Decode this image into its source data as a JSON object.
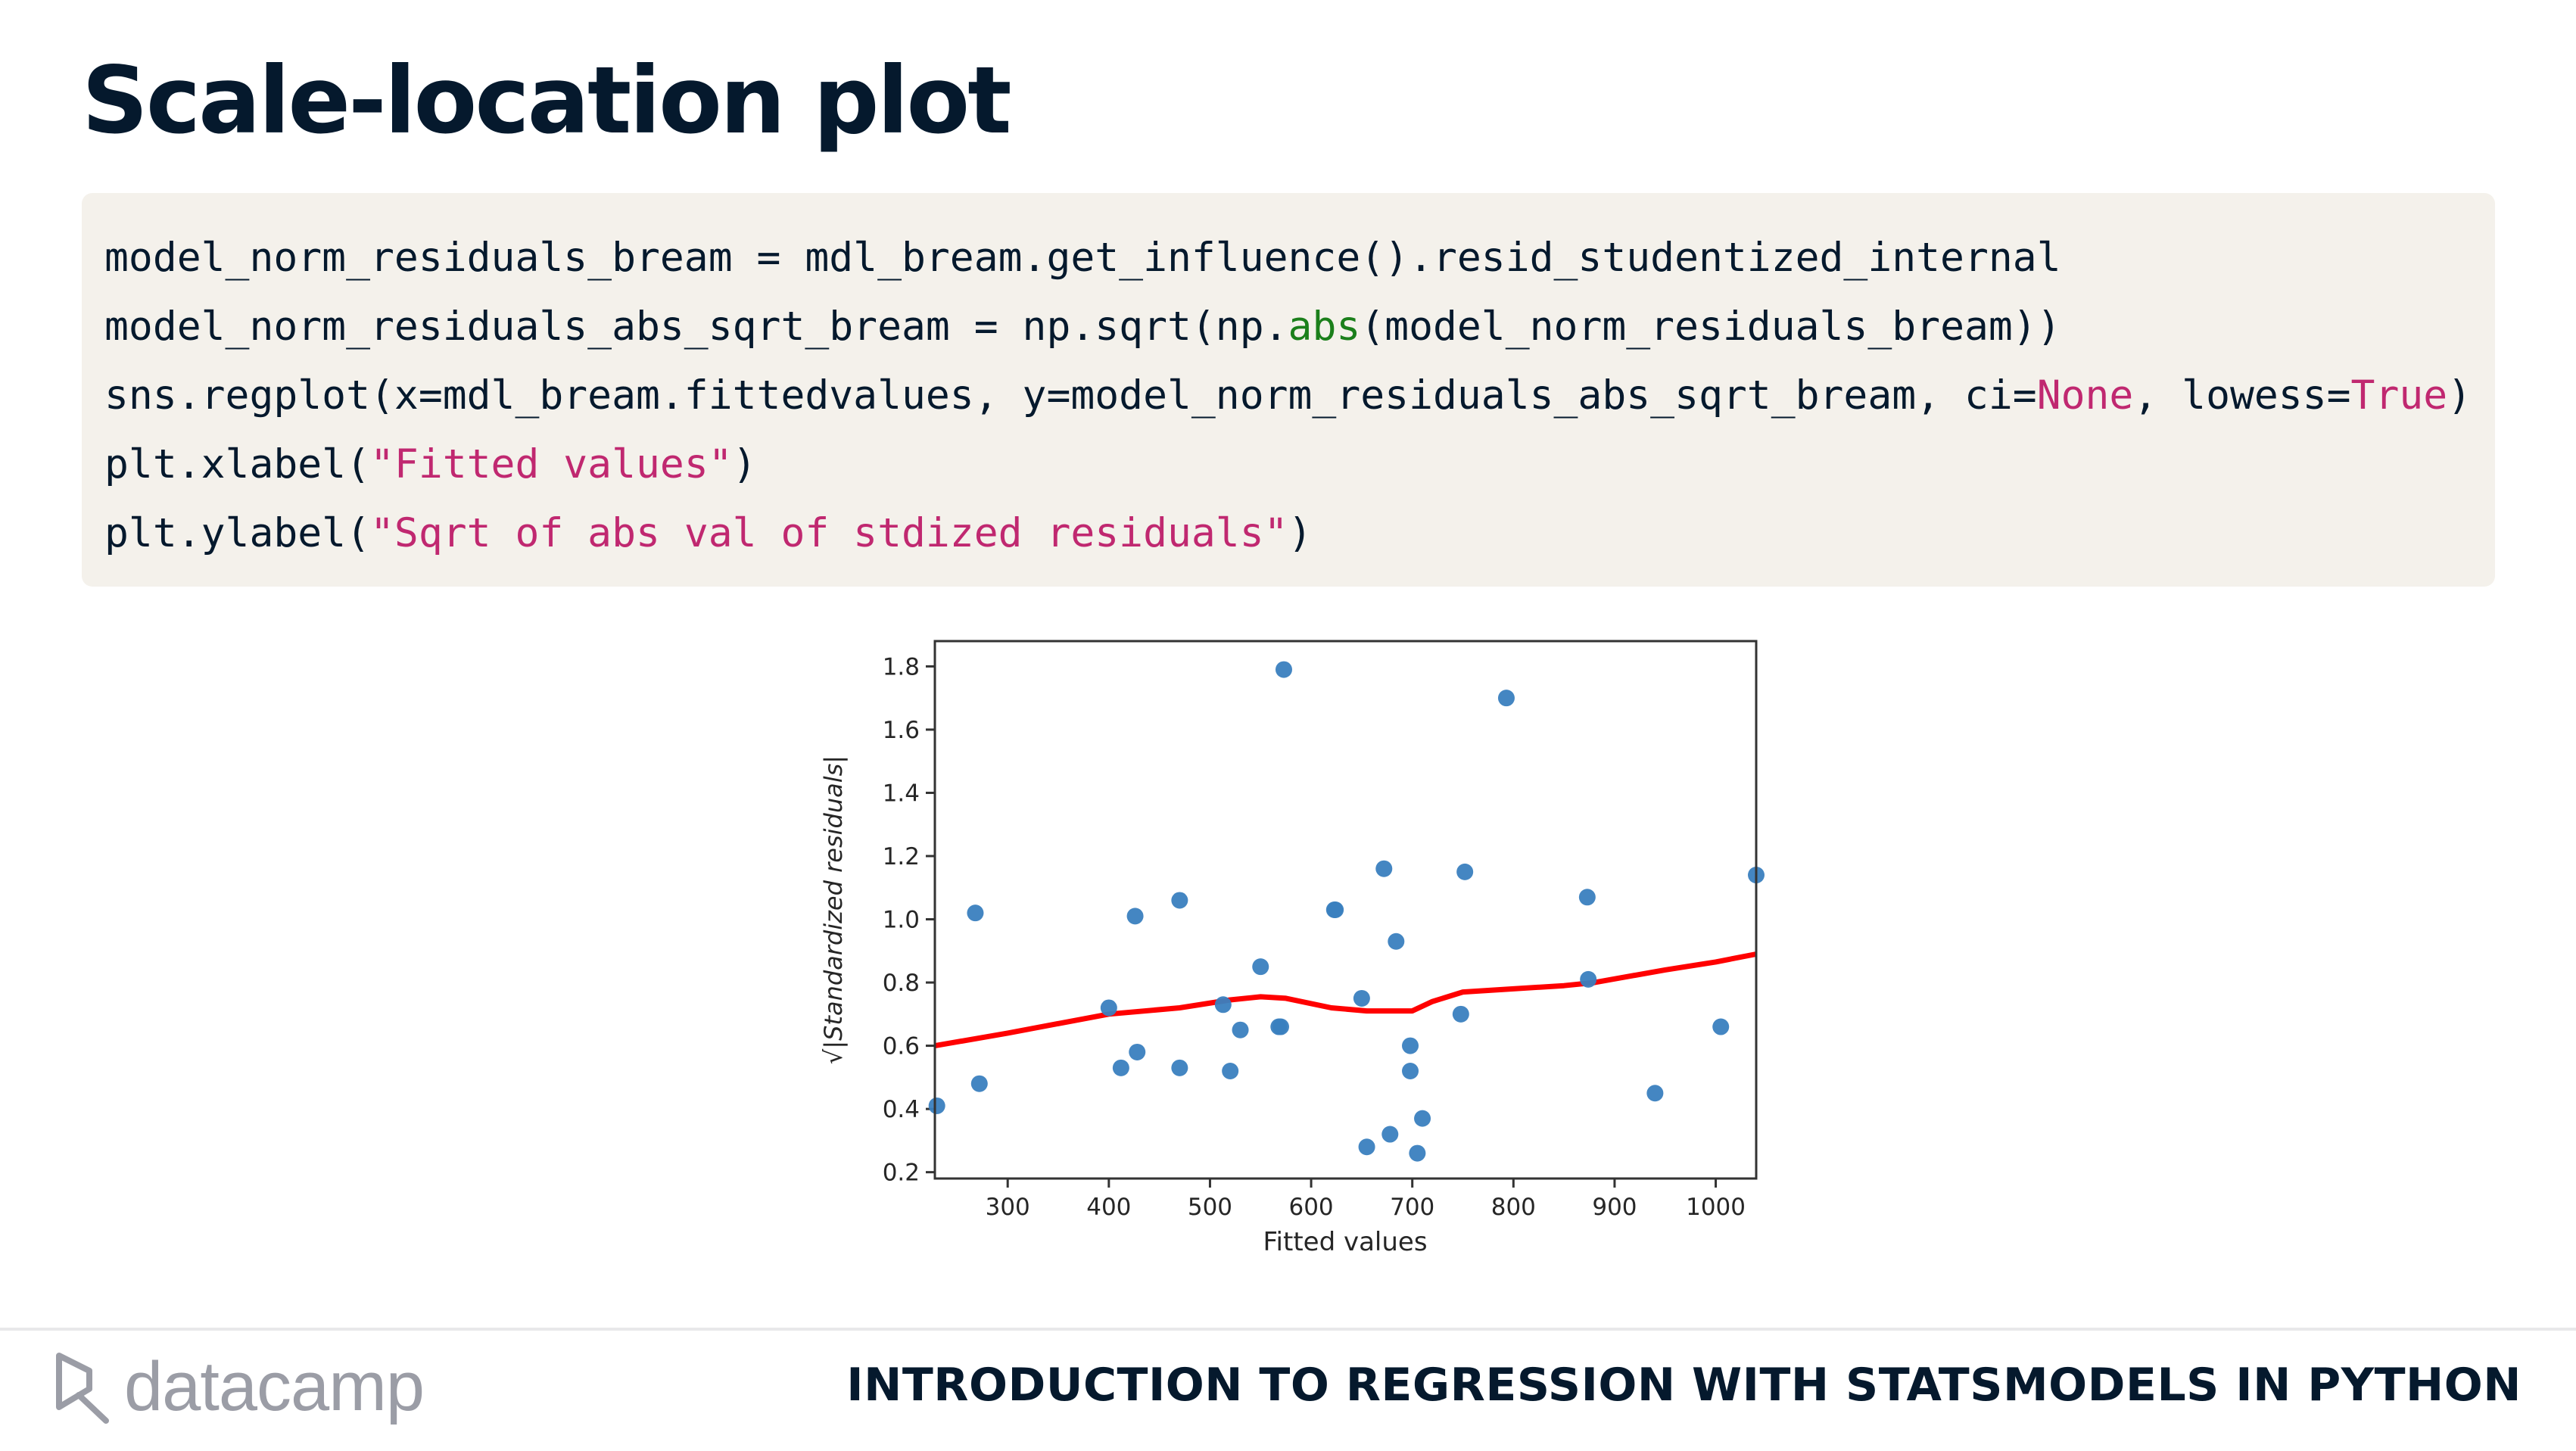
{
  "slide": {
    "title": "Scale-location plot",
    "course_title": "INTRODUCTION TO REGRESSION WITH STATSMODELS IN PYTHON",
    "logo_text": "datacamp"
  },
  "code": {
    "line1": "model_norm_residuals_bream = mdl_bream.get_influence().resid_studentized_internal",
    "line2_a": "model_norm_residuals_abs_sqrt_bream = np.sqrt(np.",
    "line2_b": "abs",
    "line2_c": "(model_norm_residuals_bream))",
    "line3_a": "sns.regplot(x=mdl_bream.fittedvalues, y=model_norm_residuals_abs_sqrt_bream, ci=",
    "line3_b": "None",
    "line3_c": ", lowess=",
    "line3_d": "True",
    "line3_e": ")",
    "line4_a": "plt.xlabel(",
    "line4_b": "\"Fitted values\"",
    "line4_c": ")",
    "line5_a": "plt.ylabel(",
    "line5_b": "\"Sqrt of abs val of stdized residuals\"",
    "line5_c": ")"
  },
  "colors": {
    "points": "#3a7fbf",
    "lowess": "#ff0000",
    "code_builtin": "#1b7f1b",
    "code_string": "#c02870"
  },
  "chart_data": {
    "type": "scatter",
    "xlabel": "Fitted values",
    "ylabel": "√|Standardized residuals|",
    "xlim": [
      228,
      1040
    ],
    "ylim": [
      0.18,
      1.88
    ],
    "xticks": [
      300,
      400,
      500,
      600,
      700,
      800,
      900,
      1000
    ],
    "yticks": [
      0.2,
      0.4,
      0.6,
      0.8,
      1.0,
      1.2,
      1.4,
      1.6,
      1.8
    ],
    "grid": false,
    "points": [
      [
        230,
        0.41
      ],
      [
        268,
        1.02
      ],
      [
        272,
        0.48
      ],
      [
        400,
        0.72
      ],
      [
        412,
        0.53
      ],
      [
        426,
        1.01
      ],
      [
        428,
        0.58
      ],
      [
        470,
        1.06
      ],
      [
        470,
        0.53
      ],
      [
        513,
        0.73
      ],
      [
        520,
        0.52
      ],
      [
        530,
        0.65
      ],
      [
        550,
        0.85
      ],
      [
        568,
        0.66
      ],
      [
        570,
        0.66
      ],
      [
        573,
        1.79
      ],
      [
        623,
        1.03
      ],
      [
        624,
        1.03
      ],
      [
        650,
        0.75
      ],
      [
        655,
        0.28
      ],
      [
        672,
        1.16
      ],
      [
        678,
        0.32
      ],
      [
        684,
        0.93
      ],
      [
        698,
        0.6
      ],
      [
        698,
        0.52
      ],
      [
        705,
        0.26
      ],
      [
        710,
        0.37
      ],
      [
        748,
        0.7
      ],
      [
        752,
        1.15
      ],
      [
        793,
        1.7
      ],
      [
        873,
        1.07
      ],
      [
        874,
        0.81
      ],
      [
        940,
        0.45
      ],
      [
        1005,
        0.66
      ],
      [
        1040,
        1.14
      ]
    ],
    "lowess": [
      [
        228,
        0.6
      ],
      [
        300,
        0.64
      ],
      [
        400,
        0.7
      ],
      [
        470,
        0.72
      ],
      [
        520,
        0.745
      ],
      [
        550,
        0.755
      ],
      [
        575,
        0.75
      ],
      [
        620,
        0.72
      ],
      [
        655,
        0.71
      ],
      [
        700,
        0.71
      ],
      [
        720,
        0.74
      ],
      [
        750,
        0.77
      ],
      [
        800,
        0.78
      ],
      [
        850,
        0.79
      ],
      [
        880,
        0.8
      ],
      [
        950,
        0.84
      ],
      [
        1000,
        0.865
      ],
      [
        1040,
        0.89
      ]
    ]
  }
}
